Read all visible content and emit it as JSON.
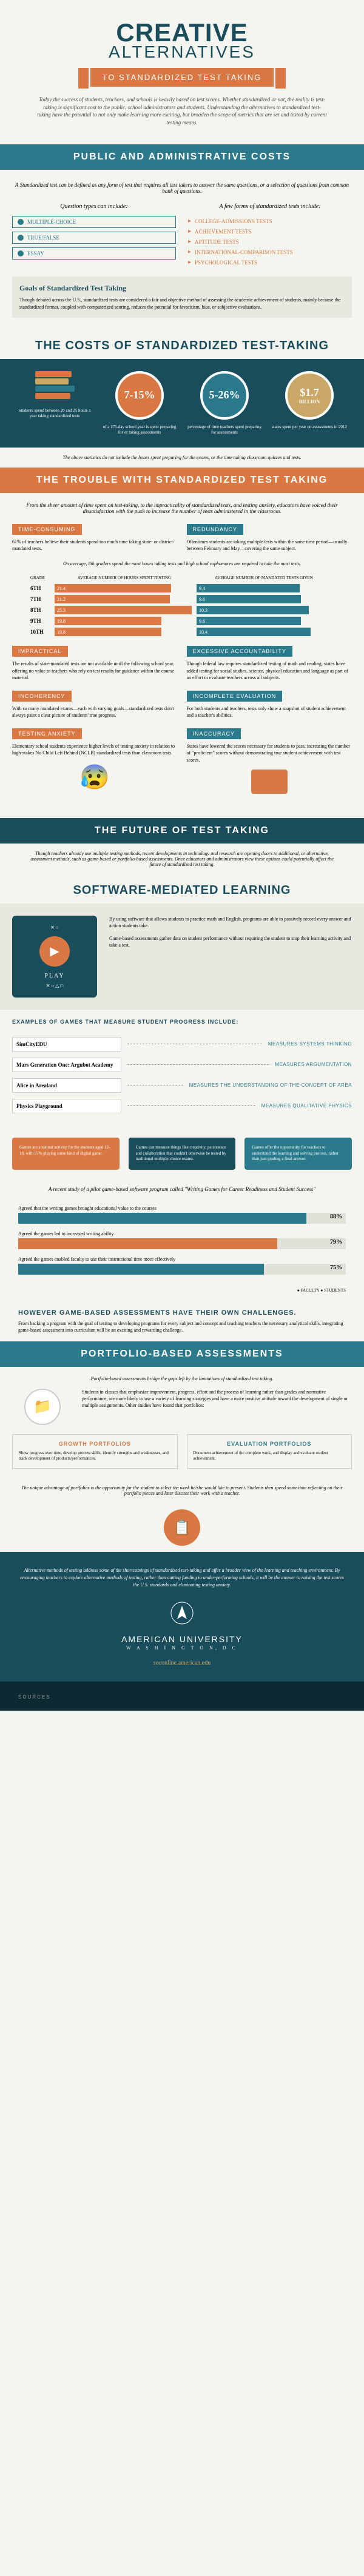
{
  "colors": {
    "teal": "#2a7a8c",
    "dark_teal": "#1a4d5c",
    "orange": "#d97843",
    "gold": "#c9a868",
    "cream": "#f5f5f0",
    "grey_bg": "#e8e8e0"
  },
  "header": {
    "title": "CREATIVE",
    "subtitle": "ALTERNATIVES",
    "banner": "TO STANDARDIZED TEST TAKING",
    "intro": "Today the success of students, teachers, and schools is heavily based on test scores. Whether standardized or not, the reality is test-taking is significant cost to the public, school administrators and students. Understanding the alternatives to standardized test-taking have the potential to not only make learning more exciting, but broaden the scope of metrics that are set and tested by current testing means."
  },
  "public_admin": {
    "head": "PUBLIC AND ADMINISTRATIVE COSTS",
    "intro": "A Standardized test can be defined as any form of test that requires all test takers to answer the same questions, or a selection of questions from common bank of questions.",
    "left_title": "Question types can include:",
    "q_types": [
      "MULTIPLE-CHOICE",
      "TRUE/FALSE",
      "ESSAY"
    ],
    "right_title": "A few forms of standardized tests include:",
    "test_forms": [
      "COLLEGE-ADMISSIONS TESTS",
      "ACHIEVEMENT TESTS",
      "APTITUDE TESTS",
      "INTERNATIONAL-COMPARISON TESTS",
      "PSYCHOLOGICAL TESTS"
    ],
    "goals_title": "Goals of Standardized Test Taking",
    "goals_text": "Though debated across the U.S., standardized tests are considered a fair and objective method of assessing the academic achievement of students, mainly because the standardized format, coupled with computerized scoring, reduces the potential for favoritism, bias, or subjective evaluations."
  },
  "costs": {
    "head": "THE COSTS OF STANDARDIZED TEST-TAKING",
    "items": [
      {
        "circle": "📚",
        "desc": "Students spend between 20 and 25 hours a year taking standardized tests"
      },
      {
        "circle": "7-15%",
        "desc": "of a 175-day school year is spent preparing for or taking assessments"
      },
      {
        "circle": "5-26%",
        "desc": "percentage of time teachers spent preparing for assessments"
      },
      {
        "circle": "$1.7",
        "circle2": "BILLION",
        "desc": "states spent per year on assessments in 2012"
      }
    ],
    "caption": "The above statistics do not include the hours spent preparing for the exams, or the time taking classroom quizzes and tests."
  },
  "trouble": {
    "head": "THE TROUBLE WITH STANDARDIZED TEST TAKING",
    "intro": "From the sheer amount of time spent on test-taking, to the impracticality of standardized tests, and testing anxiety, educators have voiced their dissatisfaction with the push to increase the number of tests administered in the classroom.",
    "rows": [
      {
        "left_tag": "TIME-CONSUMING",
        "left_text": "61% of teachers believe their students spend too much time taking state- or district-mandated tests.",
        "right_tag": "REDUNDANCY",
        "right_text": "Oftentimes students are taking multiple tests within the same time period—usually between February and May—covering the same subject."
      }
    ],
    "grade_caption": "On average, 8th graders spend the most hours taking tests and high school sophomores are required to take the most tests.",
    "grade_headers": [
      "GRADE",
      "AVERAGE NUMBER OF HOURS SPENT TESTING",
      "AVERAGE NUMBER OF MANDATED TESTS GIVEN"
    ],
    "grades": [
      {
        "g": "6TH",
        "hours": 21.4,
        "tests": 9.4,
        "hw": 85,
        "tw": 75
      },
      {
        "g": "7TH",
        "hours": 21.2,
        "tests": 9.6,
        "hw": 84,
        "tw": 76
      },
      {
        "g": "8TH",
        "hours": 25.3,
        "tests": 10.3,
        "hw": 100,
        "tw": 82
      },
      {
        "g": "9TH",
        "hours": 19.8,
        "tests": 9.6,
        "hw": 78,
        "tw": 76
      },
      {
        "g": "10TH",
        "hours": 19.8,
        "tests": 10.4,
        "hw": 78,
        "tw": 83
      }
    ],
    "rows2": [
      {
        "left_tag": "IMPRACTICAL",
        "left_text": "The results of state-mandated tests are not available until the following school year, offering no value to teachers who rely on test results for guidance within the course material.",
        "right_tag": "EXCESSIVE ACCOUNTABILITY",
        "right_text": "Though federal law requires standardized testing of math and reading, states have added testing for social studies, science, physical education and language as part of an effort to evaluate teachers across all subjects."
      },
      {
        "left_tag": "INCOHERENCY",
        "left_text": "With so many mandated exams—each with varying goals—standardized tests don't always paint a clear picture of students' true progress.",
        "right_tag": "INCOMPLETE EVALUATION",
        "right_text": "For both students and teachers, tests only show a snapshot of student achievement and a teacher's abilities."
      },
      {
        "left_tag": "TESTING ANXIETY",
        "left_text": "Elementary school students experience higher levels of testing anxiety in relation to high-stakes No Child Left Behind (NCLB) standardized tests than classroom tests.",
        "right_tag": "INACCURACY",
        "right_text": "States have lowered the scores necessary for students to pass, increasing the number of \"proficient\" scores without demonstrating true student achievement with test scores."
      }
    ]
  },
  "future": {
    "head": "THE FUTURE OF TEST TAKING",
    "intro": "Though teachers already use multiple testing methods, recent developments in technology and research are opening doors to additional, or alternative, assessment methods, such as game-based or portfolio-based assessments. Once educators and administrators view these options could potentially affect the future of standardized test taking.",
    "software_head": "SOFTWARE-MEDIATED LEARNING",
    "software_p1": "By using software that allows students to practice math and English, programs are able to passively record every answer and action students take.",
    "software_p2": "Game-based assessments gather data on student performance without requiring the student to stop their learning activity and take a test.",
    "games_head": "EXAMPLES OF GAMES THAT MEASURE STUDENT PROGRESS INCLUDE:",
    "games": [
      {
        "name": "SimCityEDU",
        "measure": "MEASURES SYSTEMS THINKING"
      },
      {
        "name": "Mars Generation One: Argubot Academy",
        "measure": "MEASURES ARGUMENTATION"
      },
      {
        "name": "Alice in Arealand",
        "measure": "MEASURES THE UNDERSTANDING OF THE CONCEPT OF AREA"
      },
      {
        "name": "Physics Playground",
        "measure": "MEASURES QUALITATIVE PHYSICS"
      }
    ],
    "findings": [
      "Games are a natural activity for the students aged 12-18, with 97% playing some kind of digital game.",
      "Games can measure things like creativity, persistence and collaboration that couldn't otherwise be tested by traditional multiple-choice exams.",
      "Games offer the opportunity for teachers to understand the learning and solving process, rather than just grading a final answer."
    ],
    "pilot_intro": "A recent study of a pilot game-based software program called \"Writing Games for Career Readiness and Student Success\"",
    "pilot_bars": [
      {
        "label": "Agreed that the writing games brought educational value to the courses",
        "pct": 88,
        "color": "teal"
      },
      {
        "label": "Agreed the games led to increased writing ability",
        "pct": 79,
        "color": "orange"
      },
      {
        "label": "Agreed the games enabled faculty to use their instructional time more effectively",
        "pct": 75,
        "color": "teal"
      }
    ],
    "pilot_legend": "● FACULTY ● STUDENTS",
    "challenge_title": "HOWEVER GAME-BASED ASSESSMENTS HAVE THEIR OWN CHALLENGES.",
    "challenge_text": "From backing a program with the goal of testing to developing programs for every subject and concept and teaching teachers the necessary analytical skills, integrating game-based assessment into curriculum will be an exciting and rewarding challenge."
  },
  "portfolio": {
    "head": "PORTFOLIO-BASED ASSESSMENTS",
    "intro": "Portfolio-based assessments bridge the gaps left by the limitations of standardized test taking.",
    "body": "Students in classes that emphasize improvement, progress, effort and the process of learning rather than grades and normative performance, are more likely to use a variety of learning strategies and have a more positive attitude toward the development of single or multiple assignments. Other studies have found that portfolios:",
    "types": [
      {
        "title": "GROWTH PORTFOLIOS",
        "text": "Show progress over time, develop process skills, identify strengths and weaknesses, and track development of products/performances."
      },
      {
        "title": "EVALUATION PORTFOLIOS",
        "text": "Document achievement of the complete work, and display and evaluate student achievement."
      }
    ],
    "footer": "The unique advantage of portfolios is the opportunity for the student to select the work he/she would like to present. Students then spend some time reflecting on their portfolio pieces and later discuss their work with a teacher."
  },
  "footer": {
    "text": "Alternative methods of testing address some of the shortcomings of standardized test-taking and offer a broader view of the learning and teaching environment. By encouraging teachers to explore alternative methods of testing, rather than cutting funding to under-performing schools, it will be the answer to raising the test scores the U.S. standards and eliminating testing anxiety.",
    "logo": "AMERICAN UNIVERSITY",
    "logo_sub": "W A S H I N G T O N, D C",
    "url": "soconline.american.edu"
  },
  "sources": "SOURCES"
}
